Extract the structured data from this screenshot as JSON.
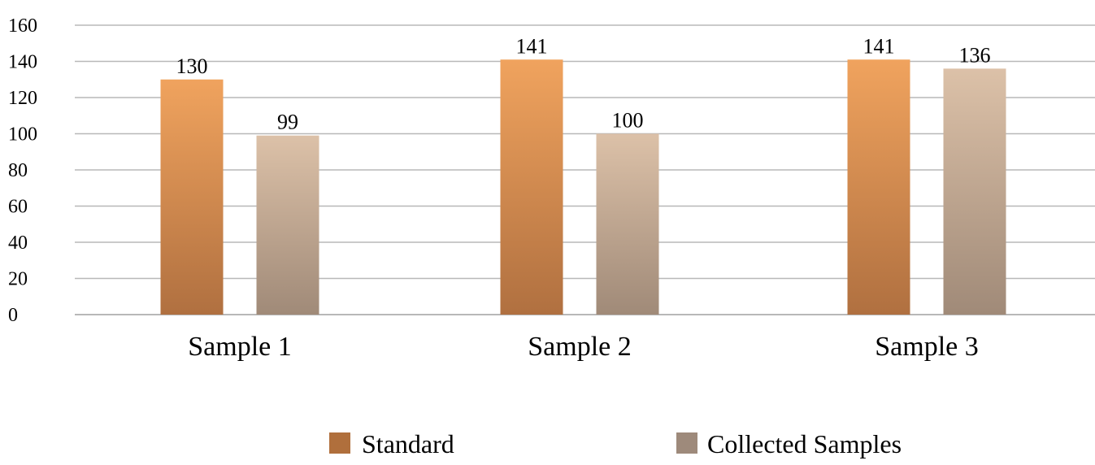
{
  "chart_data": {
    "type": "bar",
    "title": "",
    "xlabel": "",
    "ylabel": "",
    "categories": [
      "Sample 1",
      "Sample 2",
      "Sample 3"
    ],
    "series": [
      {
        "name": "Standard",
        "values": [
          130,
          141,
          141
        ]
      },
      {
        "name": "Collected Samples",
        "values": [
          99,
          100,
          136
        ]
      }
    ],
    "data_labels": [
      [
        "130",
        "141",
        "141"
      ],
      [
        "99",
        "100",
        "136"
      ]
    ],
    "ylim": [
      0,
      160
    ],
    "yticks": [
      0,
      20,
      40,
      60,
      80,
      100,
      120,
      140,
      160
    ],
    "grid": true,
    "legend_position": "bottom",
    "colors": {
      "standard_top": "#f0a35e",
      "standard_bottom": "#b07040",
      "collected_top": "#dcc1a8",
      "collected_bottom": "#a08a78",
      "legend_standard": "#b06f3c",
      "legend_collected": "#9e8a7b"
    }
  }
}
